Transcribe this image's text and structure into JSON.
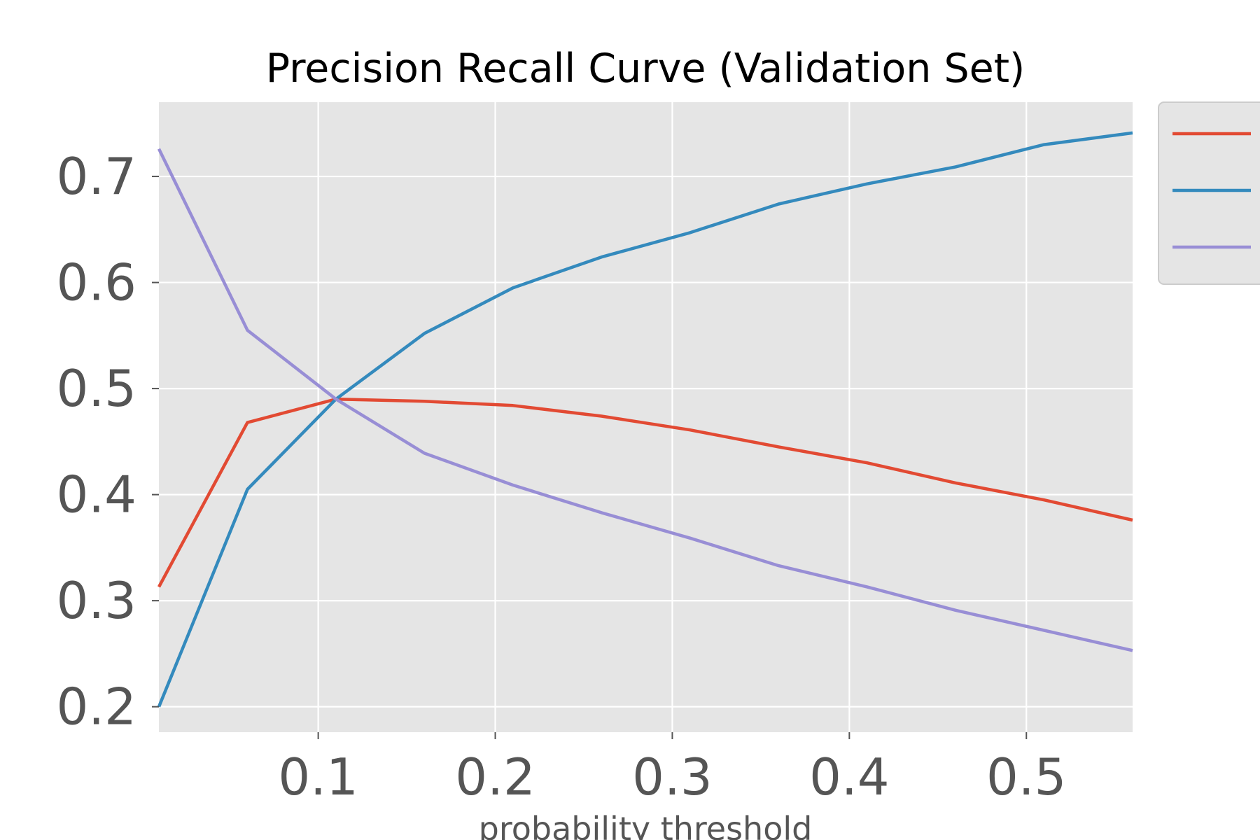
{
  "chart_data": {
    "type": "line",
    "title": "Precision Recall Curve (Validation Set)",
    "xlabel": "probability threshold",
    "ylabel": "",
    "xlim": [
      0.01,
      0.56
    ],
    "ylim": [
      0.176,
      0.77
    ],
    "xticks": [
      0.1,
      0.2,
      0.3,
      0.4,
      0.5
    ],
    "xtick_labels": [
      "0.1",
      "0.2",
      "0.3",
      "0.4",
      "0.5"
    ],
    "yticks": [
      0.2,
      0.3,
      0.4,
      0.5,
      0.6,
      0.7
    ],
    "ytick_labels": [
      "0.2",
      "0.3",
      "0.4",
      "0.5",
      "0.6",
      "0.7"
    ],
    "grid": true,
    "legend_position": "outside-right",
    "style": "ggplot",
    "colors": {
      "plot_background": "#E5E5E5",
      "grid": "#FFFFFF",
      "legend_background": "#E5E5E5"
    },
    "x": [
      0.01,
      0.06,
      0.11,
      0.16,
      0.21,
      0.26,
      0.31,
      0.36,
      0.41,
      0.46,
      0.51,
      0.56
    ],
    "series": [
      {
        "color": "#E24A33",
        "values": [
          0.313,
          0.468,
          0.49,
          0.488,
          0.484,
          0.474,
          0.461,
          0.445,
          0.43,
          0.411,
          0.395,
          0.376
        ]
      },
      {
        "color": "#348ABD",
        "values": [
          0.2,
          0.405,
          0.49,
          0.552,
          0.595,
          0.624,
          0.647,
          0.674,
          0.693,
          0.709,
          0.73,
          0.741
        ]
      },
      {
        "color": "#988ED5",
        "values": [
          0.726,
          0.555,
          0.49,
          0.439,
          0.409,
          0.383,
          0.359,
          0.333,
          0.313,
          0.291,
          0.272,
          0.253
        ]
      }
    ]
  }
}
